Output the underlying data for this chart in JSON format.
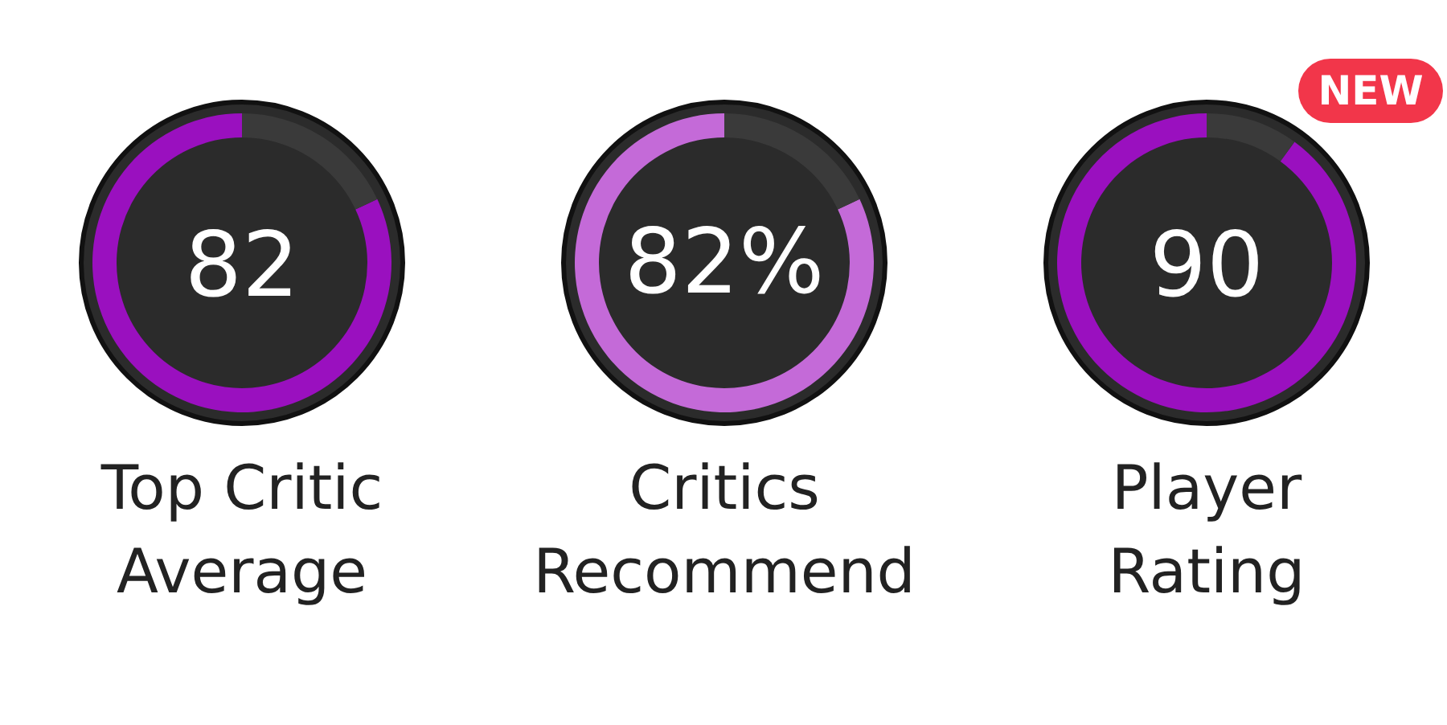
{
  "chart_data": [
    {
      "type": "donut",
      "title": "Top Critic Average",
      "categories": [
        null,
        null
      ],
      "values": [
        82,
        18
      ],
      "colors": [
        "#9a10bf",
        "#3a3a3a"
      ],
      "annotations": [
        "82"
      ]
    },
    {
      "type": "donut",
      "title": "Critics Recommend",
      "categories": [
        null,
        null
      ],
      "values": [
        82,
        18
      ],
      "colors": [
        "#c46ad8",
        "#3a3a3a"
      ],
      "annotations": [
        "82%"
      ]
    },
    {
      "type": "donut",
      "title": "Player Rating",
      "categories": [
        null,
        null
      ],
      "values": [
        90,
        10
      ],
      "colors": [
        "#9a10bf",
        "#3a3a3a"
      ],
      "annotations": [
        "90",
        "NEW"
      ]
    }
  ]
}
